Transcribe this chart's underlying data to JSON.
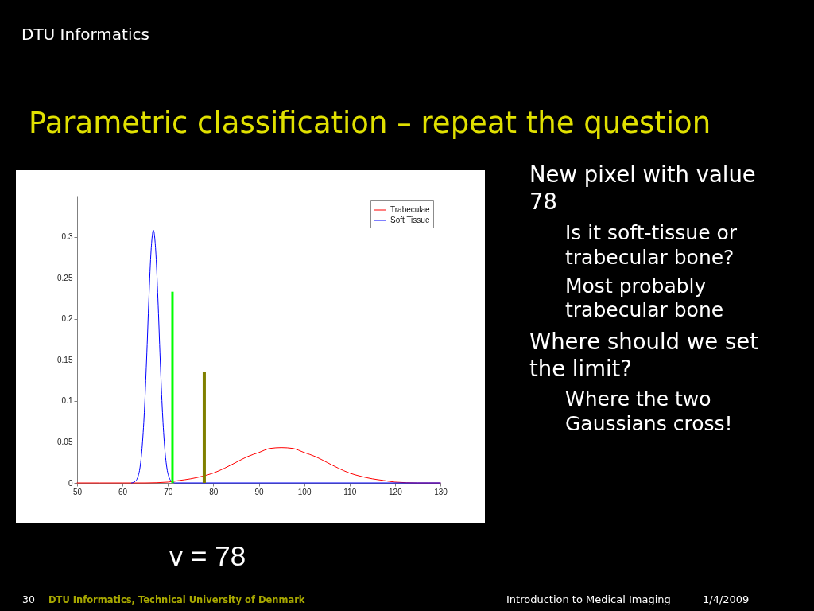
{
  "chart_data": {
    "type": "line",
    "title": "Parametric classification – repeat the question",
    "xlim": [
      50,
      130
    ],
    "xticks": [
      50,
      60,
      70,
      80,
      90,
      100,
      110,
      120,
      130
    ],
    "ylim": [
      0,
      0.35
    ],
    "yticks": [
      0,
      0.05,
      0.1,
      0.15,
      0.2,
      0.25,
      0.3
    ],
    "legend": "top right",
    "series": [
      {
        "name": "Trabeculae",
        "color": "#ff0000",
        "x": [
          50,
          60,
          65,
          70,
          72.5,
          75,
          77.5,
          80,
          82.5,
          85,
          87.5,
          90,
          92.5,
          95,
          97.5,
          100,
          102.5,
          105,
          107.5,
          110,
          112.5,
          115,
          117.5,
          120,
          125,
          130
        ],
        "values": [
          0,
          0,
          0,
          0.001,
          0.003,
          0.005,
          0.008,
          0.012,
          0.018,
          0.025,
          0.032,
          0.037,
          0.042,
          0.043,
          0.042,
          0.037,
          0.032,
          0.025,
          0.018,
          0.012,
          0.008,
          0.005,
          0.003,
          0.001,
          0,
          0
        ]
      },
      {
        "name": "Soft Tissue",
        "color": "#0000ff",
        "x": [
          62,
          62.8,
          63.3,
          63.8,
          64.3,
          64.8,
          65.3,
          65.8,
          66.3,
          66.8,
          67.3,
          67.8,
          68.3,
          68.8,
          69.3,
          69.8,
          70.3,
          70.8,
          71.6,
          130
        ],
        "values": [
          0,
          0.002,
          0.006,
          0.017,
          0.042,
          0.086,
          0.15,
          0.224,
          0.284,
          0.308,
          0.284,
          0.224,
          0.15,
          0.086,
          0.042,
          0.017,
          0.006,
          0.002,
          0,
          0
        ]
      },
      {
        "color": "#00ff00",
        "x": [
          71,
          71
        ],
        "values": [
          0.233,
          0
        ]
      },
      {
        "color": "#808000",
        "x": [
          78,
          78
        ],
        "values": [
          0.135,
          0
        ]
      }
    ],
    "annotations": [
      "DTU Informatics",
      "New pixel with value 78",
      "Is it soft-tissue or trabecular bone?",
      "Most probably trabecular bone",
      "Where should we set the limit?",
      "Where the two Gaussians cross!",
      "v = 78",
      "30",
      "DTU Informatics, Technical University of Denmark",
      "Introduction to Medical Imaging",
      "1/4/2009"
    ]
  }
}
